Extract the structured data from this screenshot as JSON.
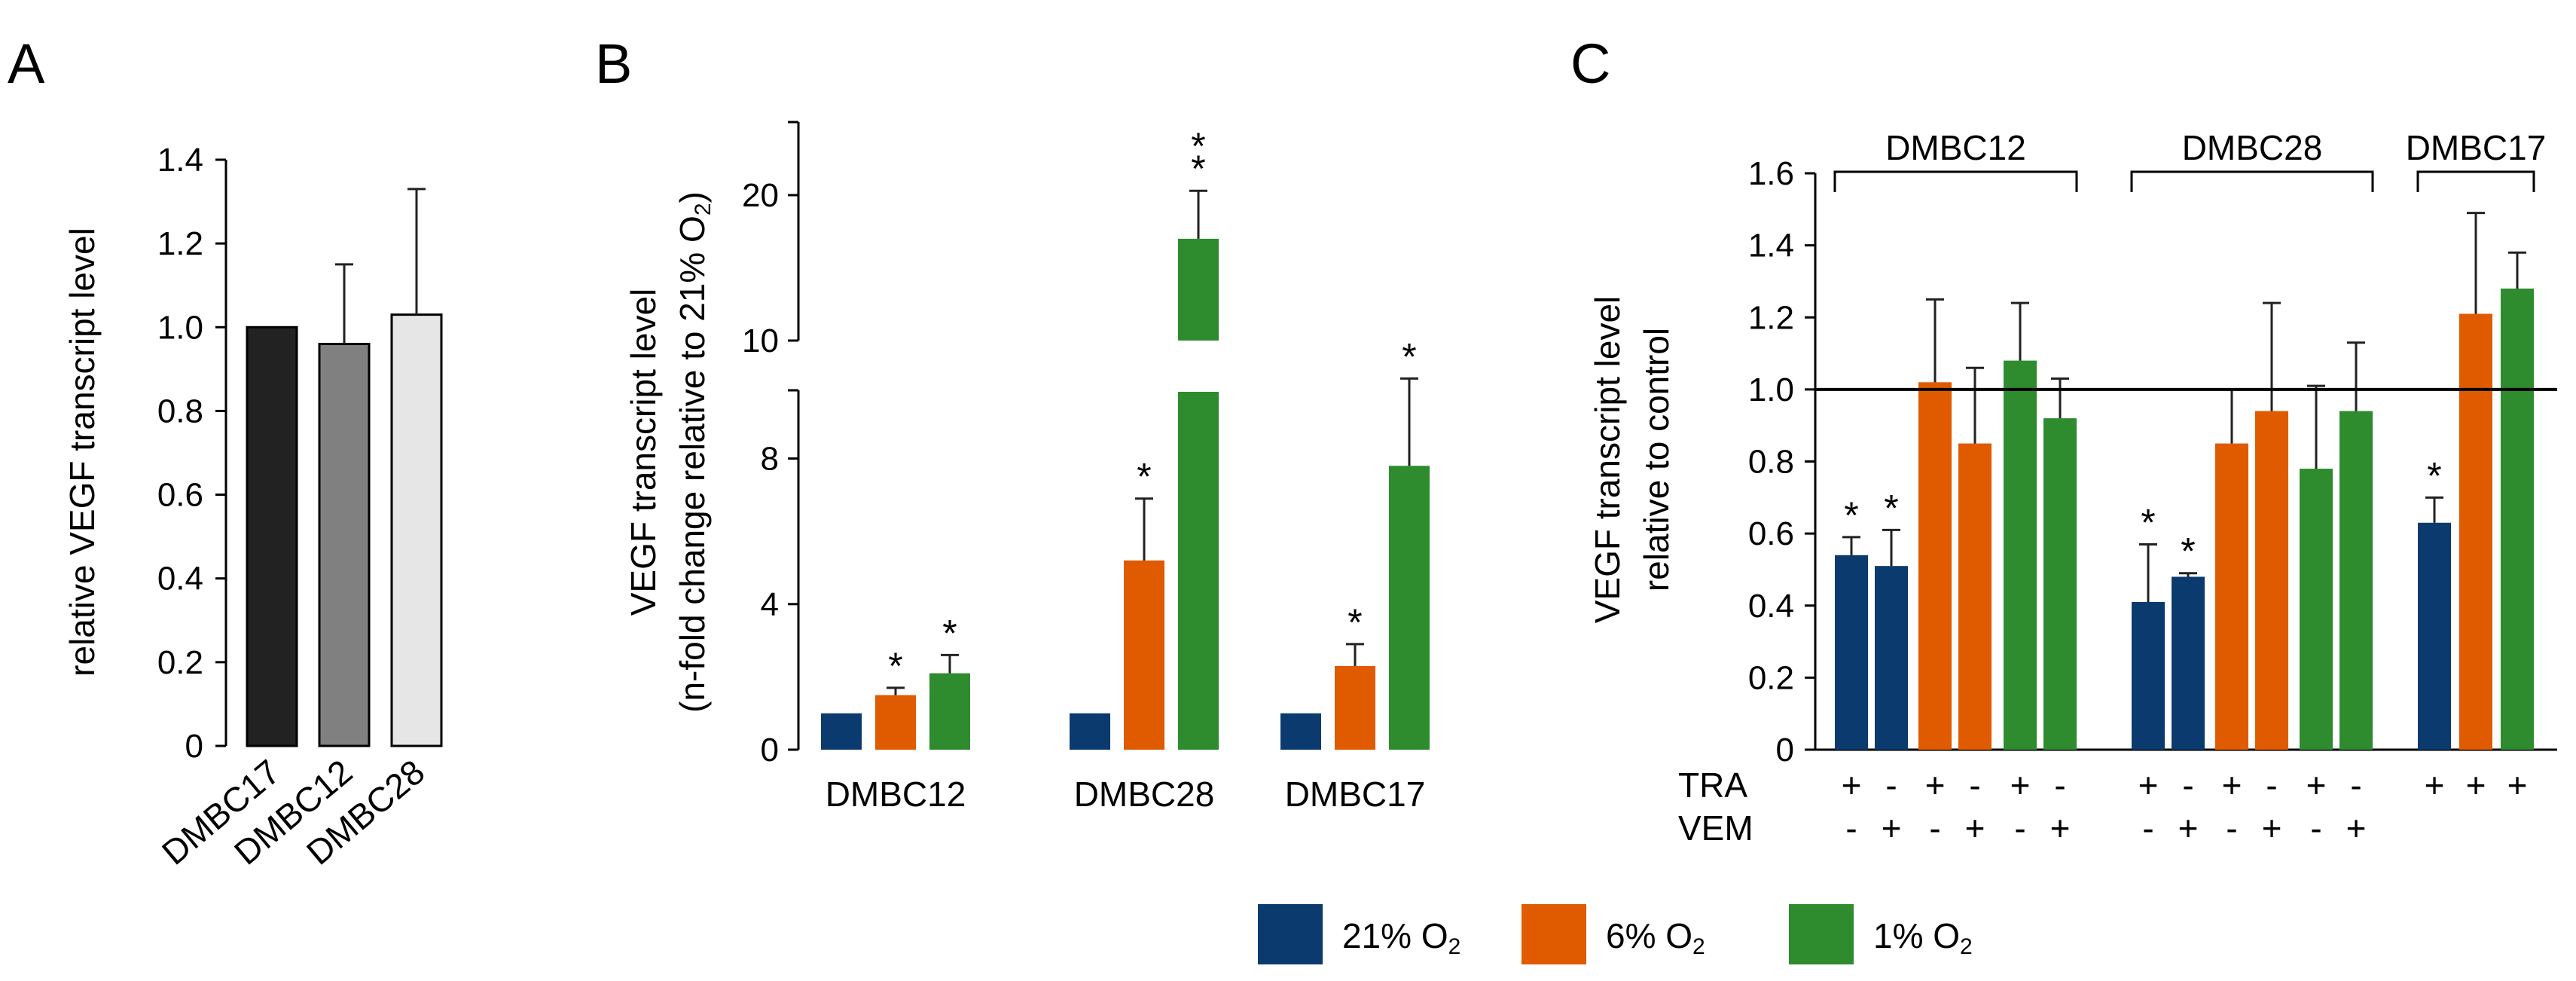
{
  "panels": {
    "A": "A",
    "B": "B",
    "C": "C"
  },
  "chart_data": [
    {
      "panel": "A",
      "type": "bar",
      "categories": [
        "DMBC17",
        "DMBC12",
        "DMBC28"
      ],
      "values": [
        1.0,
        0.96,
        1.03
      ],
      "errors": [
        0.0,
        0.19,
        0.3
      ],
      "colors": [
        "#222222",
        "#808080",
        "#e6e6e6"
      ],
      "ylabel": "relative VEGF transcript level",
      "ylim": [
        0,
        1.4
      ],
      "yticks": [
        "0",
        "0.2",
        "0.4",
        "0.6",
        "0.8",
        "1.0",
        "1.2",
        "1.4"
      ]
    },
    {
      "panel": "B",
      "type": "bar",
      "categories": [
        "DMBC12",
        "DMBC28",
        "DMBC17"
      ],
      "series": [
        {
          "name": "21% O₂",
          "values": [
            1.0,
            1.0,
            1.0
          ],
          "errors": [
            0,
            0,
            0
          ],
          "color": "#0b3a6e",
          "stars": [
            "",
            "",
            ""
          ]
        },
        {
          "name": "6% O₂",
          "values": [
            1.5,
            5.2,
            2.3
          ],
          "errors": [
            0.2,
            1.7,
            0.6
          ],
          "color": "#e05a00",
          "stars": [
            "*",
            "*",
            "*"
          ]
        },
        {
          "name": "1% O₂",
          "values": [
            2.1,
            17.0,
            7.8
          ],
          "errors": [
            0.5,
            3.3,
            2.4
          ],
          "color": "#2e8b2e",
          "stars": [
            "*",
            "**",
            "*"
          ]
        }
      ],
      "ylabel_line1": "VEGF transcript level",
      "ylabel_line2": "(n-fold change relative to 21% O",
      "ylabel_sub": "2",
      "ylabel_end": ")",
      "axis_break": [
        10,
        10
      ],
      "yticks": [
        "0",
        "4",
        "8",
        "10",
        "20"
      ]
    },
    {
      "panel": "C",
      "type": "bar",
      "groups": [
        "DMBC12",
        "DMBC28",
        "DMBC17"
      ],
      "bars": [
        {
          "value": 0.54,
          "error": 0.05,
          "color": "#0b3a6e",
          "star": "*",
          "tra": "+",
          "vem": "-"
        },
        {
          "value": 0.51,
          "error": 0.1,
          "color": "#0b3a6e",
          "star": "*",
          "tra": "-",
          "vem": "+"
        },
        {
          "value": 1.02,
          "error": 0.23,
          "color": "#e05a00",
          "star": "",
          "tra": "+",
          "vem": "-"
        },
        {
          "value": 0.85,
          "error": 0.21,
          "color": "#e05a00",
          "star": "",
          "tra": "-",
          "vem": "+"
        },
        {
          "value": 1.08,
          "error": 0.16,
          "color": "#2e8b2e",
          "star": "",
          "tra": "+",
          "vem": "-"
        },
        {
          "value": 0.92,
          "error": 0.11,
          "color": "#2e8b2e",
          "star": "",
          "tra": "-",
          "vem": "+"
        },
        {
          "value": 0.41,
          "error": 0.16,
          "color": "#0b3a6e",
          "star": "*",
          "tra": "+",
          "vem": "-"
        },
        {
          "value": 0.48,
          "error": 0.01,
          "color": "#0b3a6e",
          "star": "*",
          "tra": "-",
          "vem": "+"
        },
        {
          "value": 0.85,
          "error": 0.15,
          "color": "#e05a00",
          "star": "",
          "tra": "+",
          "vem": "-"
        },
        {
          "value": 0.94,
          "error": 0.3,
          "color": "#e05a00",
          "star": "",
          "tra": "-",
          "vem": "+"
        },
        {
          "value": 0.78,
          "error": 0.23,
          "color": "#2e8b2e",
          "star": "",
          "tra": "+",
          "vem": "-"
        },
        {
          "value": 0.94,
          "error": 0.19,
          "color": "#2e8b2e",
          "star": "",
          "tra": "-",
          "vem": "+"
        },
        {
          "value": 0.63,
          "error": 0.07,
          "color": "#0b3a6e",
          "star": "*",
          "tra": "+",
          "vem": ""
        },
        {
          "value": 1.21,
          "error": 0.28,
          "color": "#e05a00",
          "star": "",
          "tra": "+",
          "vem": ""
        },
        {
          "value": 1.28,
          "error": 0.1,
          "color": "#2e8b2e",
          "star": "",
          "tra": "+",
          "vem": ""
        }
      ],
      "ylabel_line1": "VEGF transcript level",
      "ylabel_line2": "relative to control",
      "ylim": [
        0,
        1.6
      ],
      "yticks": [
        "0",
        "0.2",
        "0.4",
        "0.6",
        "0.8",
        "1.0",
        "1.2",
        "1.4",
        "1.6"
      ],
      "reference_line": 1.0,
      "row_labels": {
        "tra": "TRA",
        "vem": "VEM"
      }
    }
  ],
  "legend": [
    {
      "label": "21% O",
      "sub": "2",
      "color": "#0b3a6e"
    },
    {
      "label": "6% O",
      "sub": "2",
      "color": "#e05a00"
    },
    {
      "label": "1% O",
      "sub": "2",
      "color": "#2e8b2e"
    }
  ]
}
